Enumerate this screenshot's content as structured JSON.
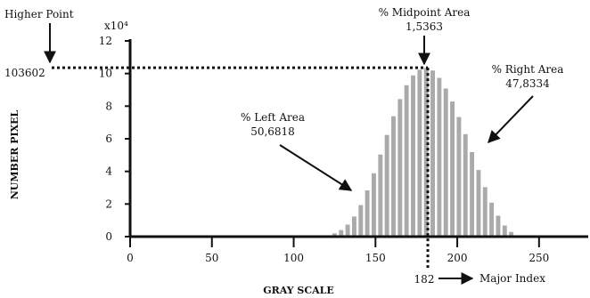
{
  "chart_data": {
    "type": "bar",
    "title": "",
    "xlabel": "GRAY SCALE",
    "ylabel": "NUMBER PIXEL",
    "y_multiplier_label": "x10⁴",
    "xlim": [
      0,
      255
    ],
    "ylim": [
      0,
      12
    ],
    "x_ticks": [
      0,
      50,
      100,
      150,
      200,
      250
    ],
    "y_ticks": [
      0,
      2,
      4,
      6,
      8,
      10,
      12
    ],
    "grid": false,
    "bar_color": "#aaaaaa",
    "series": [
      {
        "x": [
          113,
          117,
          121,
          125,
          129,
          133,
          137,
          141,
          145,
          149,
          153,
          157,
          161,
          165,
          169,
          173,
          177,
          181,
          185,
          189,
          193,
          197,
          201,
          205,
          209,
          213,
          217,
          221,
          225,
          229,
          233,
          237,
          241
        ],
        "values": [
          0.02,
          0.05,
          0.1,
          0.22,
          0.42,
          0.75,
          1.25,
          1.95,
          2.85,
          3.9,
          5.05,
          6.25,
          7.4,
          8.45,
          9.3,
          9.9,
          10.25,
          10.36,
          10.2,
          9.75,
          9.1,
          8.3,
          7.35,
          6.3,
          5.2,
          4.1,
          3.05,
          2.1,
          1.3,
          0.7,
          0.3,
          0.1,
          0.02
        ]
      }
    ],
    "higher_point": {
      "label": "Higher Point",
      "value_text": "103602",
      "y": 10.36
    },
    "midpoint": {
      "label": "% Midpoint Area",
      "value_text": "1,5363",
      "x": 182
    },
    "left_area": {
      "label": "% Left Area",
      "value_text": "50,6818"
    },
    "right_area": {
      "label": "% Right Area",
      "value_text": "47,8334"
    },
    "major_index": {
      "value_text": "182",
      "label": "Major Index"
    }
  }
}
